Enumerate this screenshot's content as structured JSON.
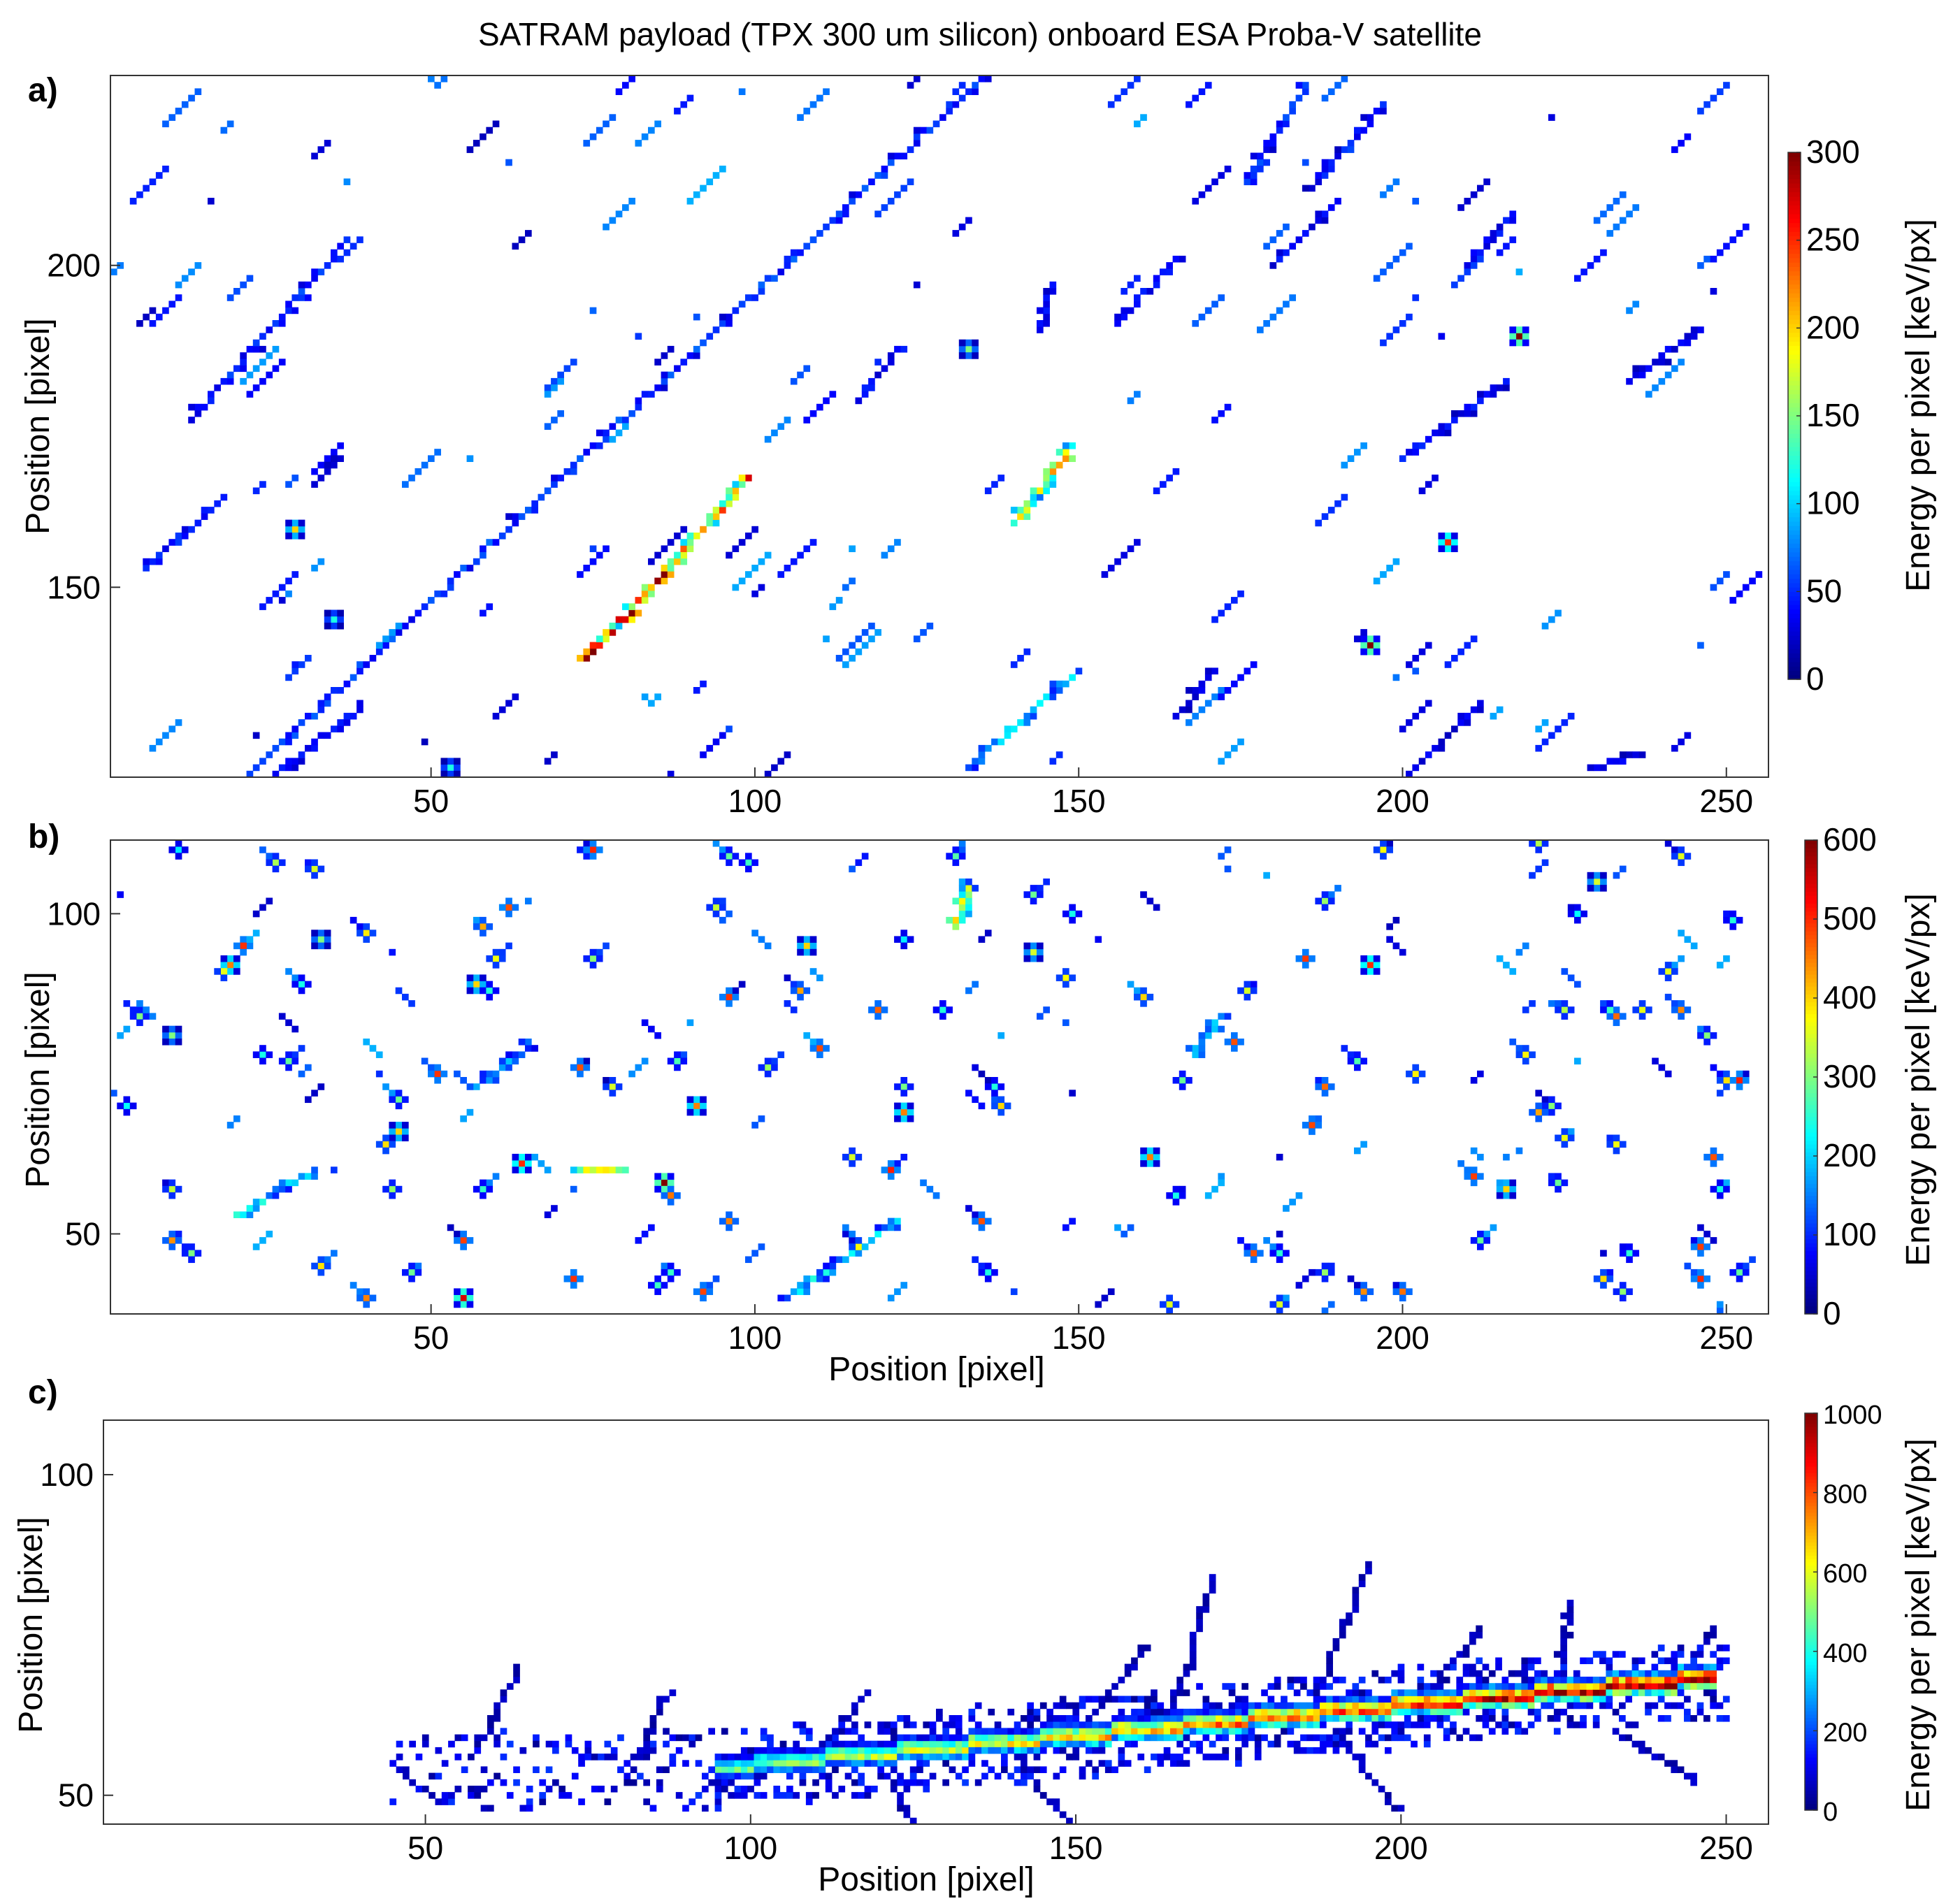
{
  "figure_title": "SATRAM payload (TPX 300 um silicon) onboard ESA Proba-V satellite",
  "chart_data": [
    {
      "panel": "a)",
      "type": "heatmap",
      "title": "",
      "xlabel": "",
      "ylabel": "Position [pixel]",
      "xlim": [
        1,
        256
      ],
      "ylim": [
        121,
        229
      ],
      "xticks": [
        50,
        100,
        150,
        200,
        250
      ],
      "yticks": [
        150,
        200
      ],
      "colorbar": {
        "label": "Energy per pixel [keV/px]",
        "min": 0,
        "max": 300,
        "ticks": [
          0,
          50,
          100,
          150,
          200,
          250,
          300
        ],
        "colormap": "jet"
      },
      "tracks": [
        {
          "x0": 22,
          "y0": 121,
          "x1": 135,
          "y1": 229,
          "e": 50
        },
        {
          "x0": 74,
          "y0": 139,
          "x1": 100,
          "y1": 168,
          "e": 220
        },
        {
          "x0": 140,
          "y0": 160,
          "x1": 149,
          "y1": 172,
          "e": 160
        },
        {
          "x0": 133,
          "y0": 122,
          "x1": 150,
          "y1": 137,
          "e": 90
        },
        {
          "x0": 13,
          "y0": 176,
          "x1": 38,
          "y1": 205,
          "e": 45
        },
        {
          "x0": 6,
          "y0": 153,
          "x1": 18,
          "y1": 164,
          "e": 40
        },
        {
          "x0": 26,
          "y0": 121,
          "x1": 40,
          "y1": 132,
          "e": 35
        },
        {
          "x0": 176,
          "y0": 213,
          "x1": 185,
          "y1": 228,
          "e": 45
        },
        {
          "x0": 165,
          "y0": 130,
          "x1": 171,
          "y1": 137,
          "e": 30
        },
        {
          "x0": 200,
          "y0": 120,
          "x1": 212,
          "y1": 132,
          "e": 30
        },
        {
          "x0": 230,
          "y0": 122,
          "x1": 236,
          "y1": 124,
          "e": 30
        },
        {
          "x0": 186,
          "y0": 212,
          "x1": 198,
          "y1": 226,
          "e": 40
        },
        {
          "x0": 144,
          "y0": 190,
          "x1": 146,
          "y1": 197,
          "e": 35
        },
        {
          "x0": 200,
          "y0": 170,
          "x1": 216,
          "y1": 182,
          "e": 40
        },
        {
          "x0": 116,
          "y0": 179,
          "x1": 123,
          "y1": 188,
          "e": 35
        },
        {
          "x0": 210,
          "y0": 200,
          "x1": 217,
          "y1": 208,
          "e": 35
        },
        {
          "x0": 156,
          "y0": 191,
          "x1": 165,
          "y1": 201,
          "e": 40
        },
        {
          "x0": 180,
          "y0": 200,
          "x1": 190,
          "y1": 210,
          "e": 35
        },
        {
          "x0": 235,
          "y0": 182,
          "x1": 246,
          "y1": 190,
          "e": 30
        }
      ],
      "clusters": [
        {
          "x": 218,
          "y": 189,
          "e": 300
        },
        {
          "x": 195,
          "y": 141,
          "e": 300
        },
        {
          "x": 207,
          "y": 157,
          "e": 250
        },
        {
          "x": 133,
          "y": 187,
          "e": 150
        },
        {
          "x": 53,
          "y": 122,
          "e": 120
        },
        {
          "x": 35,
          "y": 145,
          "e": 120
        },
        {
          "x": 29,
          "y": 159,
          "e": 200
        }
      ]
    },
    {
      "panel": "b)",
      "type": "heatmap",
      "title": "",
      "xlabel": "Position [pixel]",
      "ylabel": "Position [pixel]",
      "xlim": [
        1,
        256
      ],
      "ylim": [
        38,
        111
      ],
      "xticks": [
        50,
        100,
        150,
        200,
        250
      ],
      "yticks": [
        50,
        100
      ],
      "colorbar": {
        "label": "Energy per pixel [keV/px]",
        "min": 0,
        "max": 600,
        "ticks": [
          0,
          100,
          200,
          300,
          400,
          500,
          600
        ],
        "colormap": "jet"
      },
      "tracks": [
        {
          "x0": 105,
          "y0": 40,
          "x1": 122,
          "y1": 52,
          "e": 180
        },
        {
          "x0": 20,
          "y0": 53,
          "x1": 32,
          "y1": 60,
          "e": 200
        },
        {
          "x0": 57,
          "y0": 73,
          "x1": 66,
          "y1": 80,
          "e": 150
        },
        {
          "x0": 73,
          "y0": 60,
          "x1": 80,
          "y1": 60,
          "e": 280
        },
        {
          "x0": 131,
          "y0": 98,
          "x1": 133,
          "y1": 104,
          "e": 300
        },
        {
          "x0": 168,
          "y0": 78,
          "x1": 172,
          "y1": 84,
          "e": 150
        }
      ],
      "clusters": [
        {
          "x": 55,
          "y": 40,
          "e": 550
        },
        {
          "x": 86,
          "y": 58,
          "e": 600
        },
        {
          "x": 64,
          "y": 61,
          "e": 500
        },
        {
          "x": 123,
          "y": 69,
          "e": 450
        },
        {
          "x": 19,
          "y": 92,
          "e": 450
        },
        {
          "x": 143,
          "y": 94,
          "e": 350
        },
        {
          "x": 195,
          "y": 92,
          "e": 500
        },
        {
          "x": 45,
          "y": 66,
          "e": 400
        },
        {
          "x": 10,
          "y": 81,
          "e": 300
        },
        {
          "x": 216,
          "y": 57,
          "e": 400
        },
        {
          "x": 161,
          "y": 62,
          "e": 450
        },
        {
          "x": 230,
          "y": 105,
          "e": 350
        },
        {
          "x": 57,
          "y": 89,
          "e": 400
        },
        {
          "x": 91,
          "y": 70,
          "e": 450
        },
        {
          "x": 33,
          "y": 96,
          "e": 300
        },
        {
          "x": 108,
          "y": 95,
          "e": 400
        }
      ]
    },
    {
      "panel": "c)",
      "type": "heatmap",
      "title": "",
      "xlabel": "Position [pixel]",
      "ylabel": "Position [pixel]",
      "xlim": [
        1,
        256
      ],
      "ylim": [
        46,
        108
      ],
      "xticks": [
        50,
        100,
        150,
        200,
        250
      ],
      "yticks": [
        50,
        100
      ],
      "colorbar": {
        "label": "Energy per pixel [keV/px]",
        "min": 0,
        "max": 1000,
        "ticks": [
          0,
          200,
          400,
          600,
          800,
          1000
        ],
        "colormap": "jet"
      },
      "core_track": {
        "x0": 95,
        "y0": 54,
        "x1": 248,
        "y1": 68,
        "e_start": 450,
        "e_end": 1000
      },
      "halo": {
        "x0": 45,
        "x1": 250,
        "spread": 6
      },
      "delta_rays": [
        {
          "x0": 58,
          "y0": 58,
          "x1": 65,
          "y1": 70
        },
        {
          "x0": 83,
          "y0": 56,
          "x1": 87,
          "y1": 66
        },
        {
          "x0": 165,
          "y0": 60,
          "x1": 173,
          "y1": 84
        },
        {
          "x0": 187,
          "y0": 64,
          "x1": 193,
          "y1": 86
        },
        {
          "x0": 190,
          "y0": 60,
          "x1": 200,
          "y1": 47
        },
        {
          "x0": 150,
          "y0": 58,
          "x1": 160,
          "y1": 74
        },
        {
          "x0": 224,
          "y0": 66,
          "x1": 226,
          "y1": 80
        },
        {
          "x0": 242,
          "y0": 66,
          "x1": 250,
          "y1": 76
        },
        {
          "x0": 110,
          "y0": 56,
          "x1": 118,
          "y1": 66
        },
        {
          "x0": 120,
          "y0": 54,
          "x1": 125,
          "y1": 46
        },
        {
          "x0": 140,
          "y0": 58,
          "x1": 148,
          "y1": 46
        },
        {
          "x0": 204,
          "y0": 66,
          "x1": 212,
          "y1": 76
        },
        {
          "x0": 233,
          "y0": 60,
          "x1": 245,
          "y1": 52
        }
      ]
    }
  ]
}
